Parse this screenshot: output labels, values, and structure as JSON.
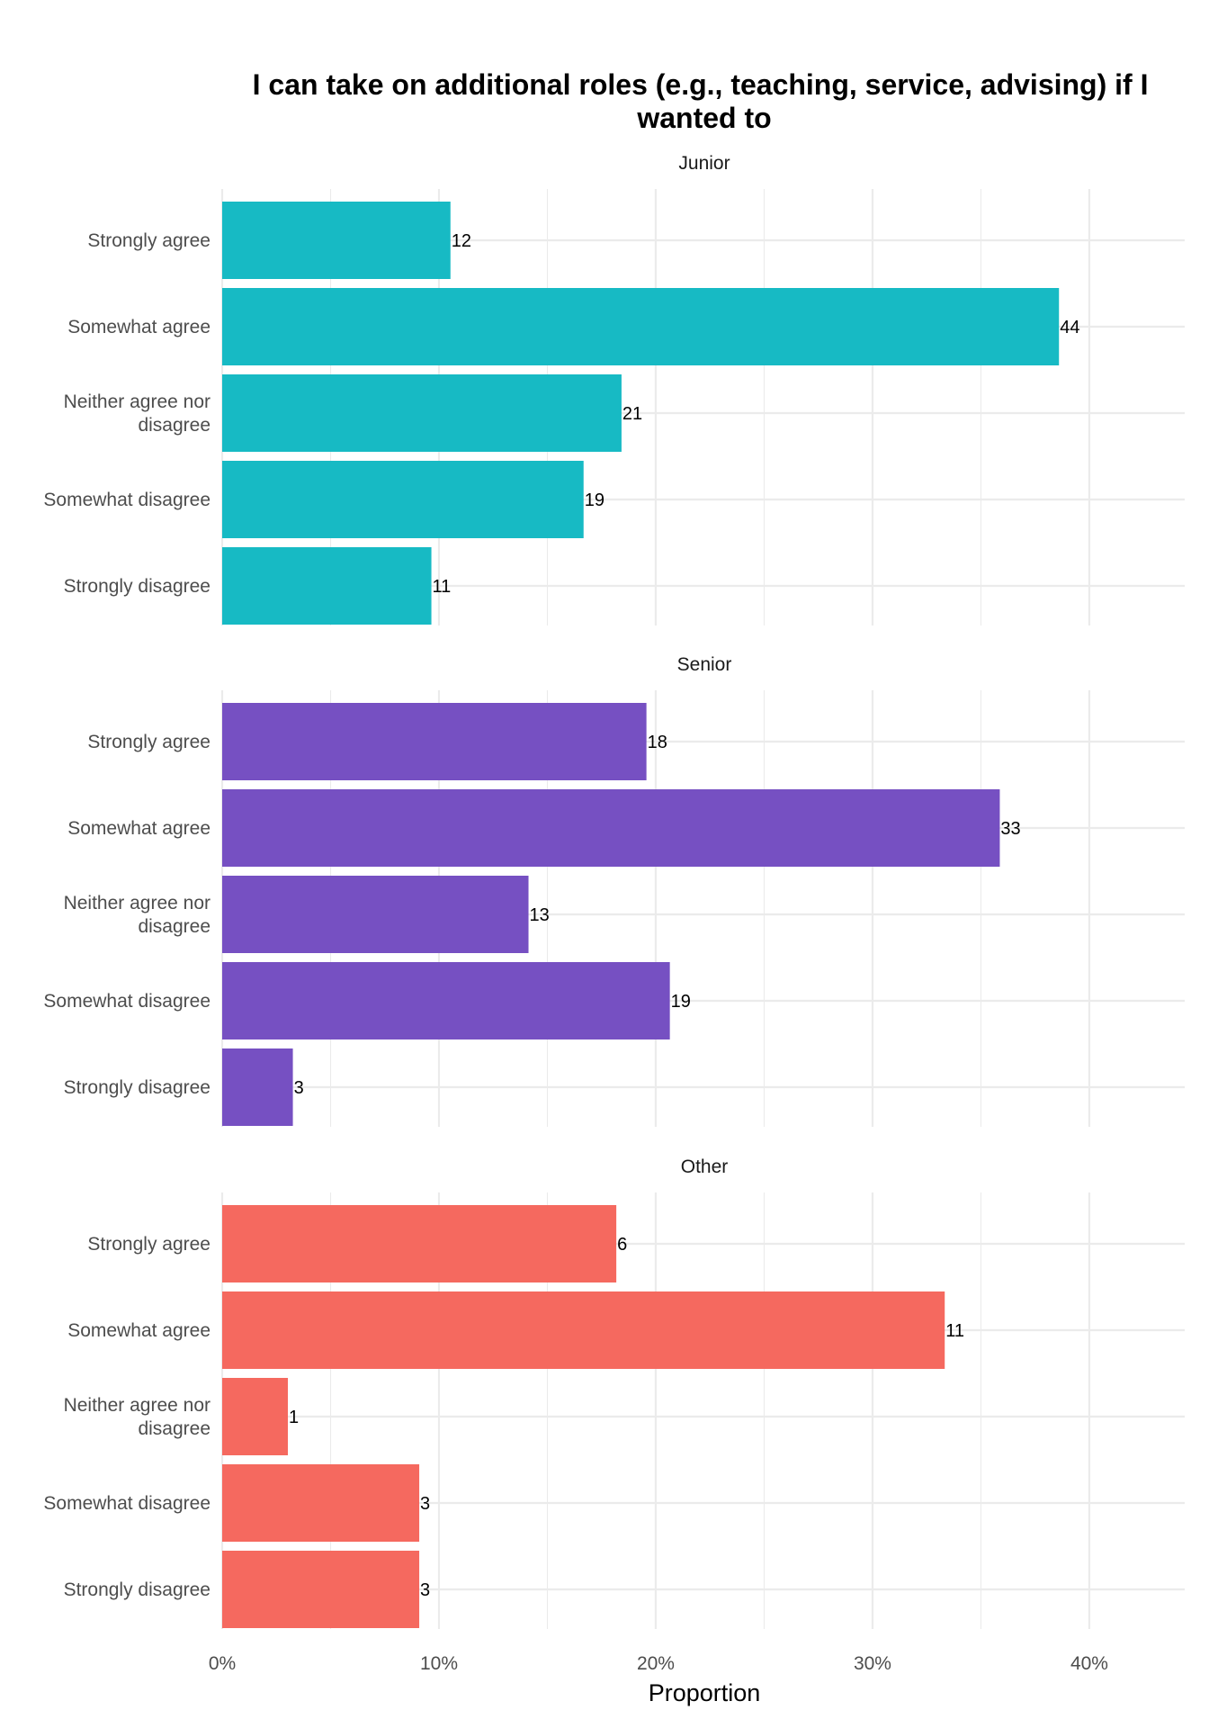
{
  "chart_data": {
    "type": "bar",
    "orientation": "horizontal",
    "title": "I can take on additional roles (e.g., teaching, service, advising) if I wanted to",
    "xlabel": "Proportion",
    "ylabel": "",
    "x_ticks": [
      "0%",
      "10%",
      "20%",
      "30%",
      "40%"
    ],
    "xlim": [
      0,
      0.444
    ],
    "grid": true,
    "legend": "none",
    "categories": [
      "Strongly agree",
      "Somewhat agree",
      "Neither agree nor disagree",
      "Somewhat disagree",
      "Strongly disagree"
    ],
    "facets": [
      {
        "name": "Junior",
        "color": "#17BAC4",
        "counts": [
          12,
          44,
          21,
          19,
          11
        ],
        "proportions": [
          0.1053,
          0.386,
          0.1842,
          0.1667,
          0.0965
        ]
      },
      {
        "name": "Senior",
        "color": "#7650C2",
        "counts": [
          18,
          33,
          13,
          19,
          3
        ],
        "proportions": [
          0.1957,
          0.3587,
          0.1413,
          0.2065,
          0.0326
        ]
      },
      {
        "name": "Other",
        "color": "#F5695F",
        "counts": [
          6,
          11,
          1,
          3,
          3
        ],
        "proportions": [
          0.1818,
          0.3333,
          0.0303,
          0.0909,
          0.0909
        ]
      }
    ]
  }
}
